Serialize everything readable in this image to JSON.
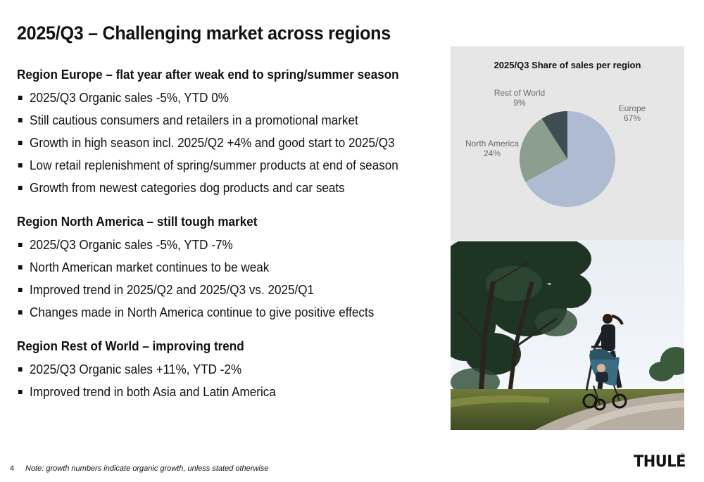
{
  "slide": {
    "title": "2025/Q3 – Challenging market across regions",
    "page_number": "4",
    "footnote": "Note: growth numbers indicate organic growth, unless stated otherwise",
    "logo_text": "THULE",
    "logo_mark": "®"
  },
  "sections": [
    {
      "heading": "Region Europe – flat year after weak end to spring/summer season",
      "bullets": [
        "2025/Q3 Organic sales -5%, YTD 0%",
        "Still cautious consumers and retailers in a promotional market",
        "Growth in high season incl. 2025/Q2 +4% and good start to 2025/Q3",
        "Low retail replenishment of spring/summer products at end of season",
        "Growth from newest categories dog products and car seats"
      ]
    },
    {
      "heading": "Region North America – still tough market",
      "bullets": [
        "2025/Q3 Organic sales -5%, YTD -7%",
        "North American market continues to be weak",
        "Improved trend in 2025/Q2 and 2025/Q3 vs. 2025/Q1",
        "Changes made in North America continue to give positive effects"
      ]
    },
    {
      "heading": "Region Rest of World – improving trend",
      "bullets": [
        "2025/Q3 Organic sales +11%, YTD -2%",
        "Improved trend in both Asia and Latin America"
      ]
    }
  ],
  "chart_data": {
    "type": "pie",
    "title": "2025/Q3 Share of sales per region",
    "slices": [
      {
        "label": "Europe",
        "value": 67,
        "display": "67%",
        "color": "#aebbd0"
      },
      {
        "label": "North America",
        "value": 24,
        "display": "24%",
        "color": "#8c9e8d"
      },
      {
        "label": "Rest of World",
        "value": 9,
        "display": "9%",
        "color": "#3e4d52"
      }
    ],
    "start": "12 o'clock",
    "direction": "clockwise",
    "legend": "none"
  },
  "photo": {
    "icon": "woman-jogging-with-stroller-photo"
  }
}
